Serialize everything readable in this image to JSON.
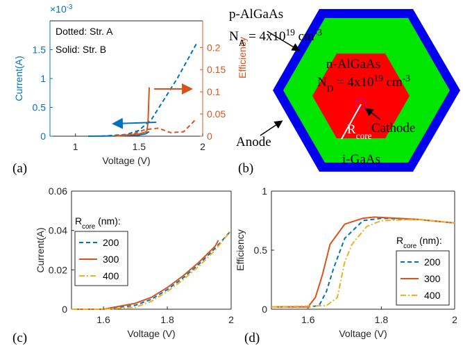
{
  "chart_data": [
    {
      "type": "line",
      "label": "(a)",
      "xlabel": "Voltage (V)",
      "ylabel": "Current(A)",
      "y2label": "Efficiency",
      "y_multiplier": {
        "base": "×10",
        "exp": "-3"
      },
      "xlim": [
        0.8,
        2
      ],
      "xticks": [
        1,
        1.5,
        2
      ],
      "ylim": [
        0,
        2
      ],
      "yticks": [
        0,
        0.5,
        1,
        1.5
      ],
      "y2lim": [
        0,
        0.26
      ],
      "y2ticks": [
        0,
        0.05,
        0.1,
        0.15,
        0.2
      ],
      "ycolor": "#0072BD",
      "y2color": "#D95319",
      "annotations": [
        "Dotted: Str. A",
        "Solid: Str. B"
      ],
      "series": [
        {
          "color": "#0072BD",
          "style": "dashed",
          "x": [
            1.2,
            1.4,
            1.5,
            1.6,
            1.7,
            1.8,
            1.9,
            1.95
          ],
          "values": [
            0,
            0.03,
            0.1,
            0.3,
            0.65,
            1.0,
            1.4,
            1.6
          ]
        },
        {
          "color": "#0072BD",
          "style": "solid",
          "x": [
            1.1,
            1.3,
            1.5,
            1.55,
            1.58
          ],
          "values": [
            0,
            0.005,
            0.02,
            0.04,
            0.08
          ]
        },
        {
          "color": "#D95319",
          "style": "dashed",
          "axis": "y2",
          "x": [
            1.3,
            1.45,
            1.55,
            1.65,
            1.75,
            1.85,
            1.92,
            1.95
          ],
          "values": [
            0,
            0.005,
            0.015,
            0.018,
            0.008,
            0.01,
            0.03,
            0.04
          ]
        },
        {
          "color": "#D95319",
          "style": "solid",
          "axis": "y2",
          "x": [
            1.3,
            1.5,
            1.56,
            1.57,
            1.58
          ],
          "values": [
            0,
            0.005,
            0.01,
            0.03,
            0.11
          ]
        }
      ]
    },
    {
      "type": "line",
      "label": "(c)",
      "xlabel": "Voltage (V)",
      "ylabel": "Current(A)",
      "xlim": [
        1.5,
        2
      ],
      "xticks": [
        1.6,
        1.8,
        2
      ],
      "ylim": [
        0,
        0.06
      ],
      "yticks": [
        0,
        0.02,
        0.04,
        0.06
      ],
      "legend": "upper left",
      "legend_title": {
        "text": "R",
        "sub": "core",
        "tail": " (nm):"
      },
      "series": [
        {
          "name": "200",
          "color": "#0072BD",
          "style": "dashed",
          "x": [
            1.5,
            1.6,
            1.7,
            1.75,
            1.8,
            1.85,
            1.9,
            1.95,
            2
          ],
          "values": [
            0,
            0,
            0.002,
            0.005,
            0.01,
            0.016,
            0.023,
            0.031,
            0.04
          ]
        },
        {
          "name": "300",
          "color": "#D95319",
          "style": "solid",
          "x": [
            1.5,
            1.6,
            1.7,
            1.75,
            1.8,
            1.85,
            1.9,
            1.95,
            1.96
          ],
          "values": [
            0,
            0,
            0.003,
            0.006,
            0.011,
            0.017,
            0.024,
            0.032,
            0.035
          ]
        },
        {
          "name": "400",
          "color": "#EDB120",
          "style": "dashdot",
          "x": [
            1.5,
            1.6,
            1.7,
            1.75,
            1.8,
            1.85,
            1.9,
            1.95,
            2
          ],
          "values": [
            0,
            0,
            0.001,
            0.004,
            0.009,
            0.015,
            0.022,
            0.03,
            0.04
          ]
        }
      ]
    },
    {
      "type": "line",
      "label": "(d)",
      "xlabel": "Voltage (V)",
      "ylabel": "Efficiency",
      "xlim": [
        1.5,
        2
      ],
      "xticks": [
        1.6,
        1.8,
        2
      ],
      "ylim": [
        0,
        1
      ],
      "yticks": [
        0,
        0.5,
        1
      ],
      "legend": "lower right",
      "legend_title": {
        "text": "R",
        "sub": "core",
        "tail": " (nm):"
      },
      "series": [
        {
          "name": "200",
          "color": "#0072BD",
          "style": "dashed",
          "x": [
            1.5,
            1.6,
            1.63,
            1.65,
            1.67,
            1.7,
            1.75,
            1.8,
            1.9,
            2
          ],
          "values": [
            0.02,
            0.02,
            0.03,
            0.15,
            0.35,
            0.6,
            0.75,
            0.77,
            0.76,
            0.73
          ]
        },
        {
          "name": "300",
          "color": "#D95319",
          "style": "solid",
          "x": [
            1.5,
            1.6,
            1.62,
            1.64,
            1.66,
            1.7,
            1.75,
            1.78,
            1.9,
            2
          ],
          "values": [
            0.02,
            0.02,
            0.1,
            0.3,
            0.55,
            0.72,
            0.77,
            0.78,
            0.76,
            0.73
          ]
        },
        {
          "name": "400",
          "color": "#EDB120",
          "style": "dashdot",
          "x": [
            1.5,
            1.65,
            1.68,
            1.7,
            1.72,
            1.76,
            1.8,
            1.9,
            2
          ],
          "values": [
            0.02,
            0.03,
            0.1,
            0.4,
            0.55,
            0.7,
            0.75,
            0.76,
            0.73
          ]
        }
      ]
    }
  ],
  "diagram": {
    "label": "(b)",
    "p_layer": "p-AlGaAs",
    "p_doping": {
      "n": "N",
      "sub": "A",
      "mid": " = 4x10",
      "sup": "19",
      "unit": " cm",
      "unit_sup": "-3"
    },
    "n_layer": "n-AlGaAs",
    "n_doping": {
      "n": "N",
      "sub": "D",
      "mid": " = 4x10",
      "sup": "19",
      "unit": " cm",
      "unit_sup": "-3"
    },
    "cathode": "Cathode",
    "radius": {
      "text": "R",
      "sub": "core"
    },
    "anode": "Anode",
    "i_layer": "i-GaAs"
  }
}
